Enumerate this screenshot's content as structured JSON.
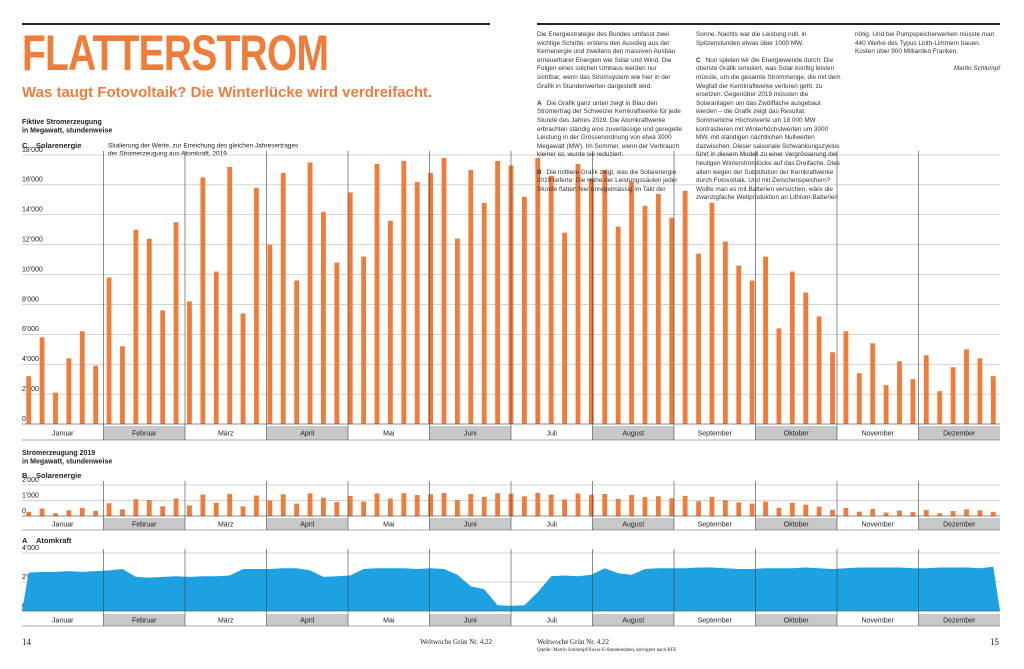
{
  "header": {
    "title": "FLATTERSTROM",
    "subtitle": "Was taugt Fotovoltaik? Die Winterlücke wird verdreifacht."
  },
  "article": {
    "paragraphs": [
      {
        "text": "Die Energiestrategie des Bundes umfasst zwei wichtige Schritte: erstens den Ausstieg aus der Kernenergie und zweitens den massiven Ausbau erneuerbarer Energien wie Solar und Wind. Die Folgen eines solchen Umbaus werden nur sichtbar, wenn das Stromsystem wie hier in der Grafik in Stundenwerten dargestellt wird."
      },
      {
        "marker": "A",
        "text": "Die Grafik ganz unten zeigt in Blau den Stromertrag der Schweizer Kernkraftwerke für jede Stunde des Jahres 2019. Die Atomkraftwerke erbrachten ständig eine zuverlässige und geregelte Leistung in der Grössenordnung von etwa 3000 Megawatt (MW). Im Sommer, wenn der Verbrauch kleiner ist, wurde sie reduziert."
      },
      {
        "marker": "B",
        "text": "Die mittlere Grafik zeigt, was die Solarenergie 2019 lieferte: Die Höhe der Leistungssäulen jeder Stunde flattert hier unregelmässig im Takt der Sonne. Nachts war die Leistung null, in Spitzenstunden etwas über 1000 MW."
      },
      {
        "marker": "C",
        "text": "Nun spielen wir die Energiewende durch: Die oberste Grafik simuliert, was Solar künftig leisten müsste, um die gesamte Strommenge, die mit dem Wegfall der Kernkraftwerke verloren geht, zu ersetzen. Gegenüber 2019 müssten die Solaranlagen um das Zwölffache ausgebaut werden – die Grafik zeigt das Resultat: Sommerliche Höchstwerte um 18 000 MW kontrastieren mit Winterhöchstwerten um 3000 MW, mit ständigen nächtlichen Nullwerten dazwischen. Dieser saisonale Schwankungszyklus führt in diesem Modell zu einer Vergrösserung der heutigen Winterstromlücke auf das Dreifache. Dies allein wegen der Substitution der Kernkraftwerke durch Fotovoltaik. Und mit Zwischenspeichern? Wollte man es mit Batterien versuchen, wäre die zwanzigfache Weltproduktion an Lithium-Batterien nötig. Und bei Pumpspeicherwerken müsste man 440 Werke des Typus Linth-Limmern bauen. Kosten über 900 Milliarden Franken."
      }
    ],
    "author": "Martin Schlumpf"
  },
  "chart_data": [
    {
      "type": "bar",
      "heading": [
        "Fiktive Stromerzeugung",
        "in Megawatt, stundenweise"
      ],
      "panel": "C",
      "title": "Solarenergie",
      "annotation": [
        "Skalierung der Werte, zur Erreichung des gleichen Jahresertrages",
        "der Stromerzeugung aus Atomkraft, 2019"
      ],
      "month_labels": [
        "Januar",
        "Februar",
        "März",
        "April",
        "Mai",
        "Juni",
        "Juli",
        "August",
        "September",
        "Oktober",
        "November",
        "Dezember"
      ],
      "color": "#f07c3a",
      "ylim": [
        0,
        18000
      ],
      "yticks": [
        0,
        {
          "value": 2000,
          "label": "2'000"
        },
        {
          "value": 4000,
          "label": "4'000"
        },
        {
          "value": 6000,
          "label": "6'000"
        },
        {
          "value": 8000,
          "label": "8'000"
        },
        {
          "value": 10000,
          "label": "10'000"
        },
        {
          "value": 12000,
          "label": "12'000"
        },
        {
          "value": 14000,
          "label": "14'000"
        },
        {
          "value": 16000,
          "label": "16'000"
        },
        {
          "value": 18000,
          "label": "18'000"
        }
      ],
      "values": [
        3200,
        5800,
        2100,
        4400,
        6200,
        3900,
        9800,
        5200,
        13000,
        12400,
        7600,
        13500,
        8200,
        16500,
        10200,
        17200,
        7400,
        15800,
        12000,
        16800,
        9600,
        17500,
        14200,
        10800,
        15500,
        11200,
        17400,
        13600,
        17600,
        16200,
        16800,
        17800,
        12400,
        17000,
        14800,
        17600,
        17300,
        15200,
        17800,
        16600,
        12800,
        17400,
        16400,
        17000,
        13200,
        16200,
        14600,
        15400,
        13800,
        15600,
        11400,
        14800,
        12200,
        10600,
        9600,
        11200,
        6400,
        10200,
        8800,
        7200,
        4800,
        6200,
        3400,
        5400,
        2600,
        4200,
        3000,
        4600,
        2200,
        3800,
        5000,
        4400,
        3200
      ]
    },
    {
      "type": "bar",
      "heading": [
        "Stromerzeugung 2019",
        "in Megawatt, stundenweise"
      ],
      "panel": "B",
      "title": "Solarenergie",
      "month_labels": [
        "Januar",
        "Februar",
        "März",
        "April",
        "Mai",
        "Juni",
        "Juli",
        "August",
        "September",
        "Oktober",
        "November",
        "Dezember"
      ],
      "color": "#f07c3a",
      "ylim": [
        0,
        2000
      ],
      "yticks": [
        0,
        {
          "value": 1000,
          "label": "1'000"
        },
        {
          "value": 2000,
          "label": "2'000"
        }
      ],
      "values": [
        270,
        480,
        180,
        370,
        520,
        330,
        820,
        430,
        1080,
        1030,
        630,
        1130,
        680,
        1380,
        850,
        1430,
        620,
        1320,
        1000,
        1400,
        800,
        1460,
        1180,
        900,
        1290,
        930,
        1450,
        1130,
        1470,
        1350,
        1400,
        1480,
        1030,
        1420,
        1230,
        1470,
        1440,
        1270,
        1480,
        1380,
        1070,
        1450,
        1370,
        1420,
        1100,
        1350,
        1220,
        1280,
        1150,
        1300,
        950,
        1230,
        1020,
        880,
        800,
        930,
        530,
        850,
        730,
        600,
        400,
        520,
        280,
        450,
        220,
        350,
        250,
        380,
        180,
        320,
        420,
        370,
        270
      ]
    },
    {
      "type": "area",
      "panel": "A",
      "title": "Atomkraft",
      "month_labels": [
        "Januar",
        "Februar",
        "März",
        "April",
        "Mai",
        "Juni",
        "Juli",
        "August",
        "September",
        "Oktober",
        "November",
        "Dezember"
      ],
      "color": "#1ea1e0",
      "ylim": [
        0,
        4000
      ],
      "yticks": [
        0,
        {
          "value": 2000,
          "label": "2'000"
        },
        {
          "value": 4000,
          "label": "4'000"
        }
      ],
      "values": [
        2650,
        2700,
        2700,
        2750,
        2700,
        2750,
        2800,
        2900,
        2350,
        2300,
        2350,
        2400,
        2350,
        2400,
        2400,
        2450,
        2900,
        2900,
        2900,
        2950,
        2950,
        2800,
        2350,
        2400,
        2450,
        2900,
        2950,
        2950,
        2950,
        2900,
        2950,
        2900,
        2500,
        1700,
        1500,
        400,
        350,
        400,
        1300,
        2400,
        2450,
        2400,
        2500,
        2950,
        2600,
        2500,
        2900,
        2950,
        2950,
        2950,
        3000,
        3000,
        2950,
        2900,
        2900,
        2950,
        2950,
        2950,
        3000,
        2950,
        2900,
        2950,
        3000,
        3000,
        3000,
        3000,
        2950,
        2950,
        3000,
        3000,
        3000,
        2950,
        3050
      ]
    }
  ],
  "footer": {
    "page_left": "14",
    "issue_left": "Weltwoche Grün Nr. 4.22",
    "issue_right": "Weltwoche Grün Nr. 4.22",
    "source": "Quelle: Martin Schlumpf/Swiss-E-Stundendaten, korrigiert nach BFE",
    "page_right": "15"
  }
}
